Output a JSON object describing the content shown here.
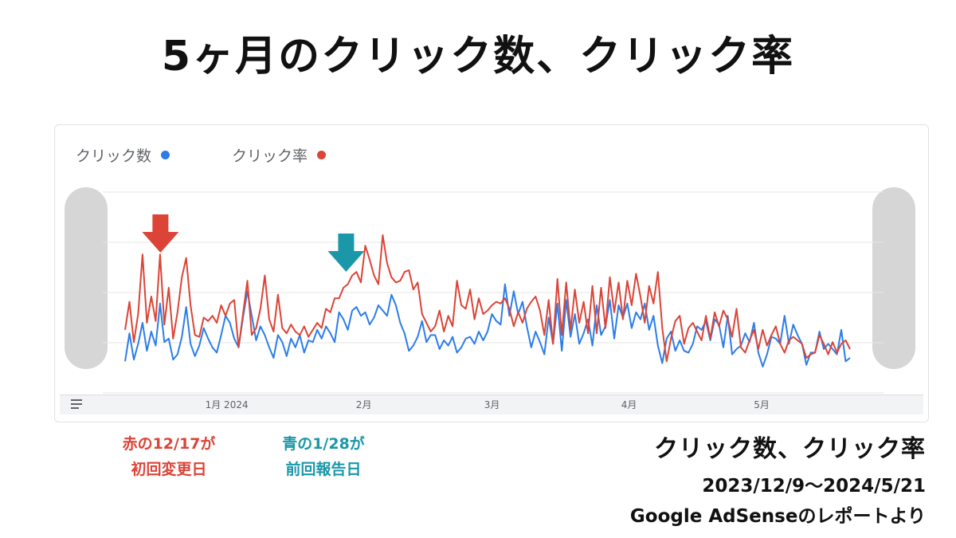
{
  "title": "5ヶ月のクリック数、クリック率",
  "legend": {
    "clicks_label": "クリック数",
    "ctr_label": "クリック率"
  },
  "colors": {
    "clicks": "#2b7de9",
    "ctr": "#db4437",
    "arrow_red": "#db4437",
    "arrow_teal": "#1a97a8"
  },
  "icons": {
    "menu": "menu-lines-icon",
    "arrow_red": "down-arrow-icon",
    "arrow_teal": "down-arrow-icon"
  },
  "notes": {
    "red_line1": "赤の12/17が",
    "red_line2": "初回変更日",
    "teal_line1": "青の1/28が",
    "teal_line2": "前回報告日"
  },
  "caption": {
    "line1": "クリック数、クリック率",
    "line2": "2023/12/9〜2024/5/21",
    "line3": "Google AdSenseのレポートより"
  },
  "chart_data": {
    "type": "line",
    "x_start": "2023-12-09",
    "x_end": "2024-05-21",
    "x_tick_labels": [
      "1月 2024",
      "2月",
      "3月",
      "4月",
      "5月"
    ],
    "x_tick_dates": [
      "2024-01-01",
      "2024-02-01",
      "2024-03-01",
      "2024-04-01",
      "2024-05-01"
    ],
    "y_axis_labels": "none",
    "grid": "horizontal",
    "legend_position": "top-left",
    "markers": [
      {
        "date": "2023-12-17",
        "color": "red"
      },
      {
        "date": "2024-01-28",
        "color": "teal"
      }
    ],
    "series": [
      {
        "name": "クリック数",
        "values": [
          18,
          34,
          19,
          28,
          40,
          24,
          35,
          27,
          51,
          29,
          31,
          19,
          22,
          32,
          49,
          28,
          21,
          27,
          37,
          31,
          26,
          23,
          33,
          44,
          40,
          31,
          26,
          43,
          58,
          44,
          30,
          38,
          33,
          26,
          20,
          33,
          29,
          21,
          31,
          26,
          33,
          23,
          30,
          29,
          36,
          31,
          38,
          34,
          29,
          46,
          42,
          36,
          47,
          49,
          44,
          46,
          39,
          43,
          50,
          47,
          44,
          56,
          50,
          40,
          34,
          24,
          27,
          32,
          41,
          29,
          33,
          33,
          25,
          30,
          27,
          32,
          23,
          26,
          31,
          32,
          28,
          35,
          30,
          35,
          45,
          41,
          39,
          62,
          44,
          58,
          45,
          52,
          38,
          26,
          35,
          29,
          22,
          43,
          28,
          51,
          24,
          53,
          32,
          45,
          28,
          34,
          42,
          27,
          50,
          33,
          38,
          53,
          31,
          50,
          43,
          51,
          37,
          46,
          42,
          51,
          36,
          44,
          27,
          17,
          31,
          35,
          24,
          30,
          24,
          23,
          28,
          38,
          36,
          41,
          30,
          42,
          39,
          26,
          44,
          22,
          25,
          27,
          34,
          29,
          40,
          23,
          15,
          22,
          32,
          31,
          28,
          44,
          28,
          39,
          33,
          28,
          16,
          23,
          23,
          35,
          25,
          28,
          25,
          22,
          36,
          18,
          20
        ],
        "dates_covered": "2023-12-09 to 2024-05-21"
      },
      {
        "name": "クリック率",
        "values": [
          36,
          52,
          29,
          45,
          79,
          40,
          55,
          41,
          79,
          39,
          60,
          31,
          46,
          66,
          77,
          50,
          33,
          32,
          43,
          41,
          44,
          40,
          50,
          44,
          51,
          53,
          26,
          45,
          64,
          33,
          37,
          48,
          67,
          42,
          35,
          56,
          37,
          34,
          39,
          35,
          33,
          38,
          32,
          36,
          40,
          37,
          48,
          46,
          54,
          54,
          60,
          62,
          67,
          69,
          63,
          84,
          76,
          67,
          62,
          90,
          74,
          66,
          63,
          64,
          69,
          70,
          59,
          63,
          45,
          40,
          35,
          38,
          47,
          35,
          44,
          38,
          64,
          50,
          48,
          59,
          42,
          54,
          45,
          47,
          50,
          52,
          51,
          54,
          48,
          38,
          46,
          40,
          48,
          52,
          55,
          47,
          33,
          53,
          28,
          65,
          33,
          63,
          36,
          59,
          40,
          52,
          34,
          61,
          34,
          60,
          37,
          66,
          46,
          63,
          42,
          64,
          50,
          68,
          55,
          40,
          61,
          51,
          69,
          37,
          18,
          31,
          41,
          44,
          28,
          37,
          40,
          35,
          30,
          44,
          31,
          46,
          38,
          47,
          42,
          32,
          48,
          26,
          23,
          30,
          36,
          25,
          36,
          27,
          33,
          38,
          28,
          23,
          30,
          32,
          30,
          28,
          20,
          22,
          23,
          33,
          28,
          22,
          29,
          23,
          28,
          30,
          25
        ]
      }
    ]
  }
}
